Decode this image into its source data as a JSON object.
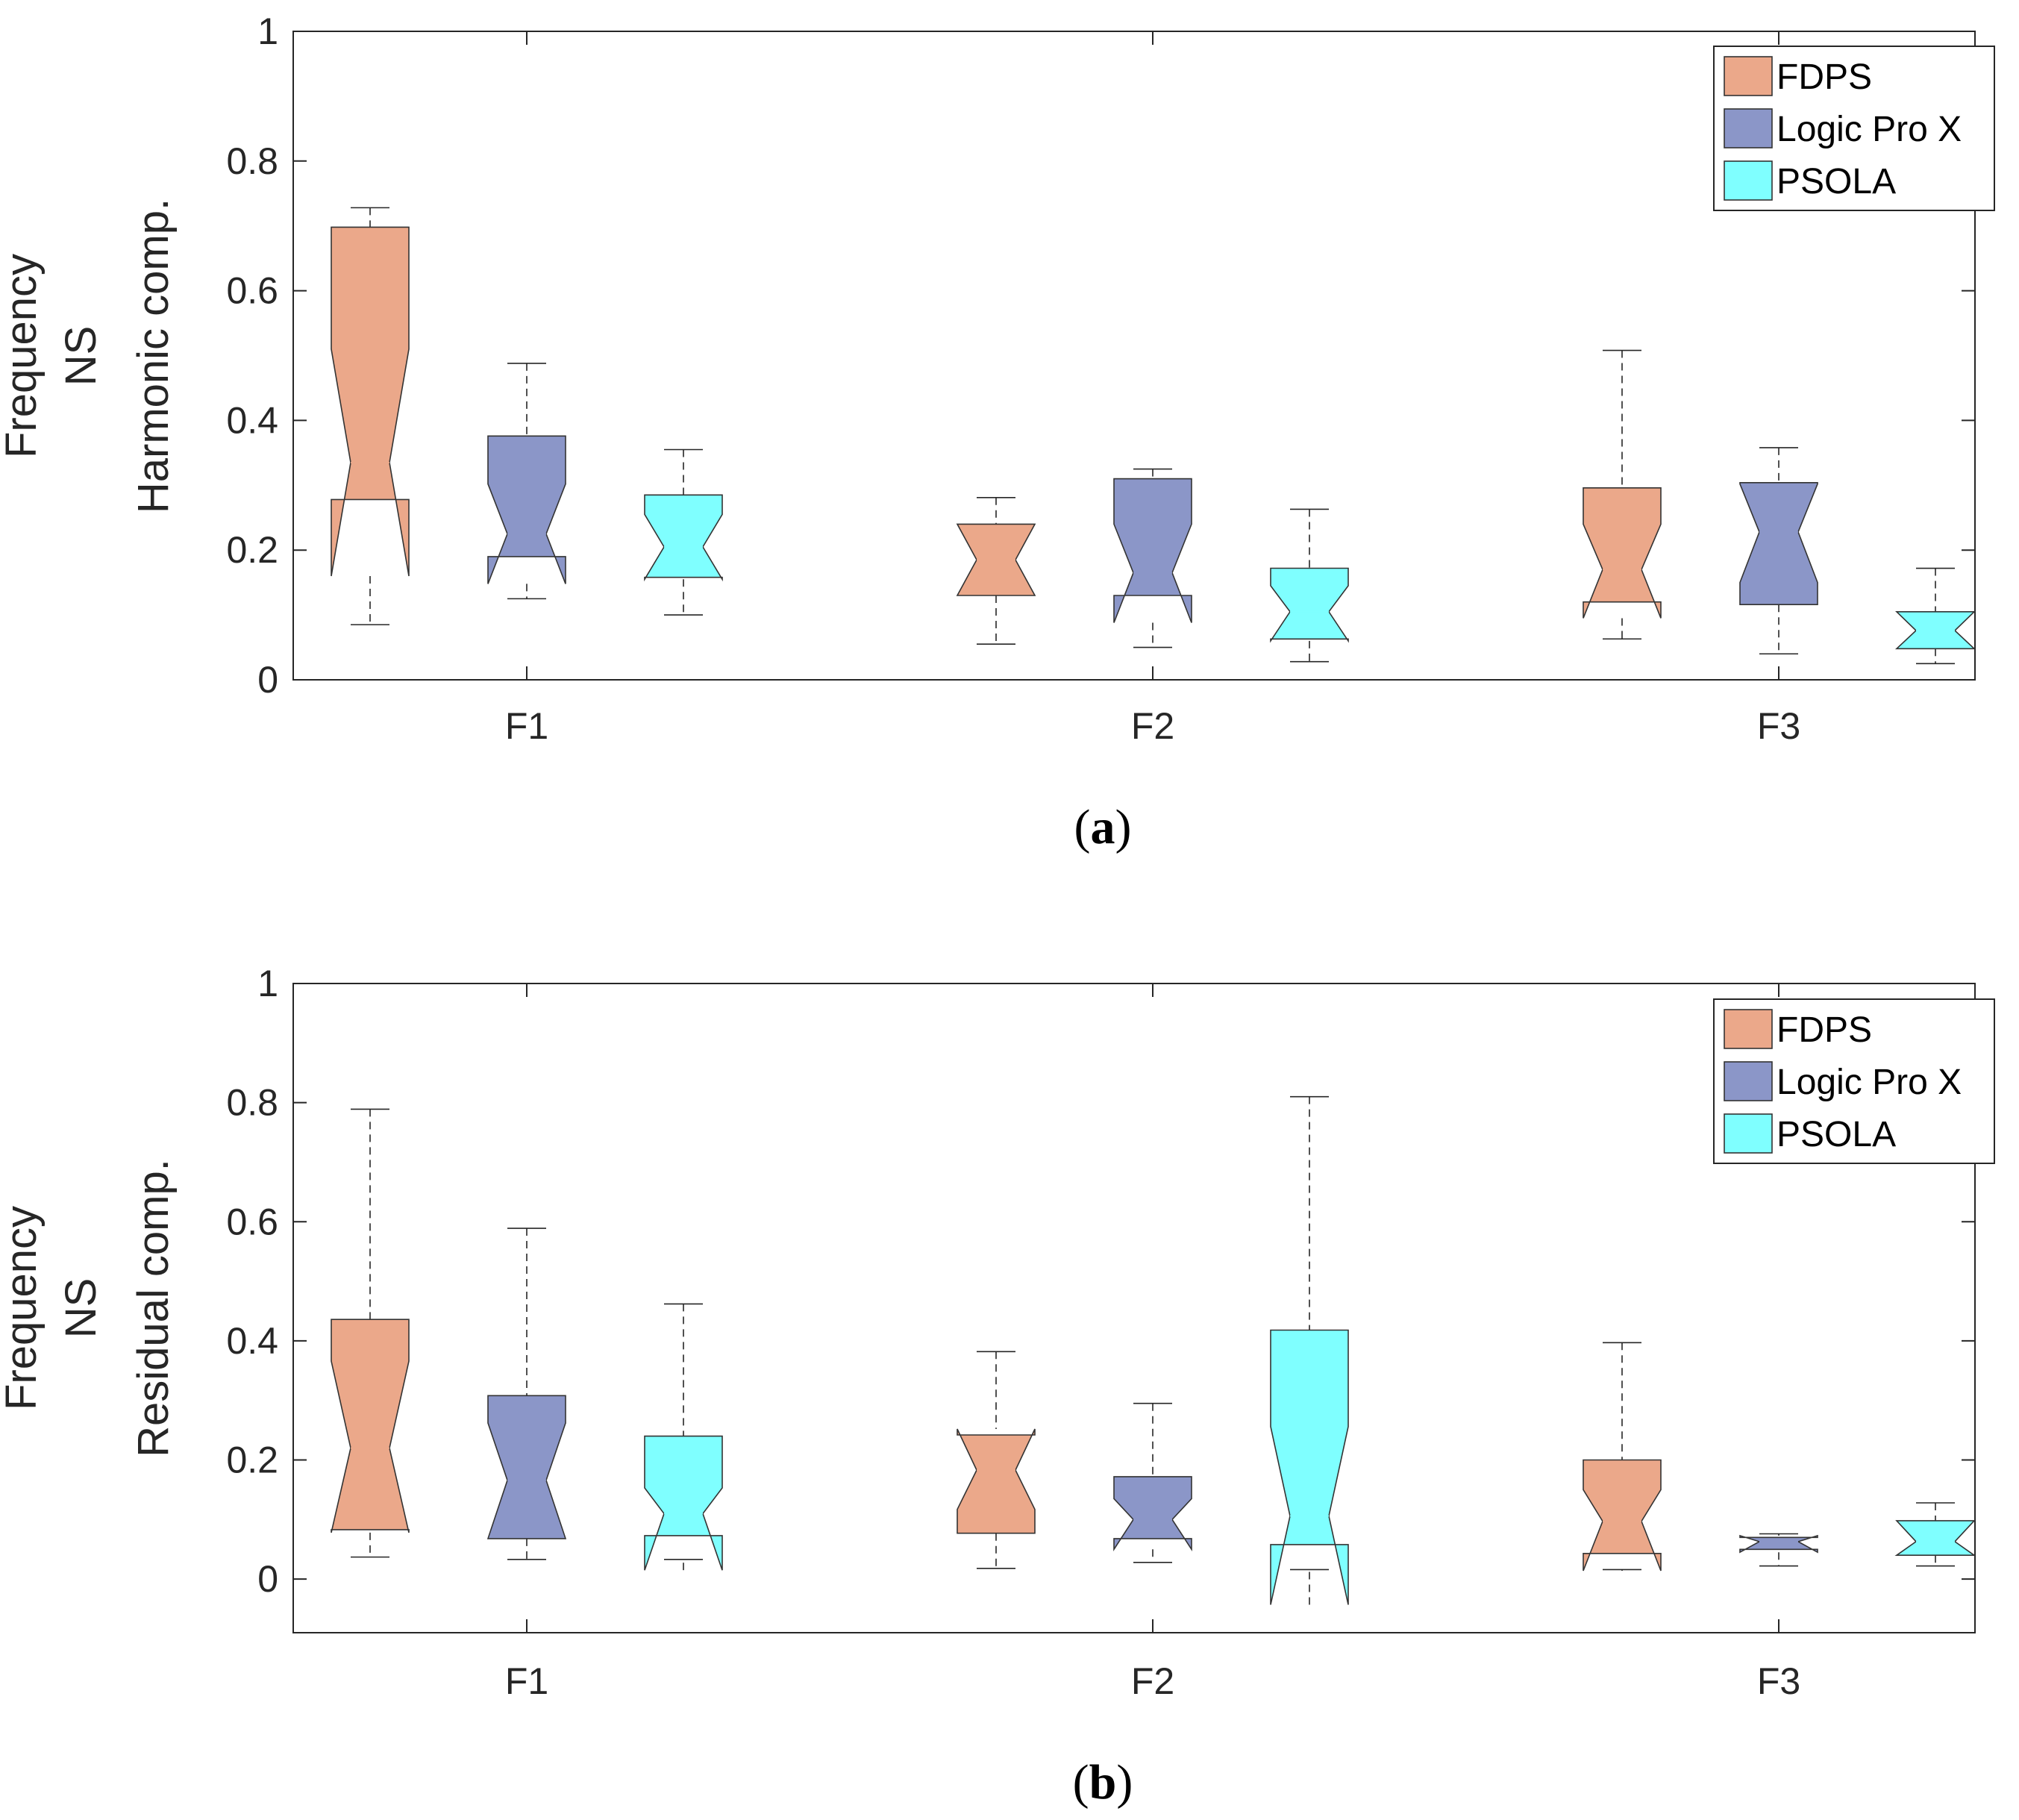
{
  "chart_data": [
    {
      "type": "box",
      "notched": true,
      "caption": "(a)",
      "caption_letter": "a",
      "ylabel_lines": [
        "Frequency",
        "NS",
        "Harmonic comp."
      ],
      "ylim": [
        0,
        1
      ],
      "yticks": [
        0,
        0.2,
        0.4,
        0.6,
        0.8,
        1
      ],
      "ytick_labels": [
        "0",
        "0.2",
        "0.4",
        "0.6",
        "0.8",
        "1"
      ],
      "categories": [
        "F1",
        "F2",
        "F3"
      ],
      "legend": {
        "position": "top-right",
        "entries": [
          "FDPS",
          "Logic Pro X",
          "PSOLA"
        ]
      },
      "series": [
        {
          "name": "FDPS",
          "color": "#EBA88A",
          "boxes": [
            {
              "category": "F1",
              "lower_whisker": 0.085,
              "q1": 0.278,
              "median": 0.335,
              "q3": 0.698,
              "upper_whisker": 0.728,
              "notch_low": 0.16,
              "notch_high": 0.51
            },
            {
              "category": "F2",
              "lower_whisker": 0.055,
              "q1": 0.13,
              "median": 0.185,
              "q3": 0.24,
              "upper_whisker": 0.281,
              "notch_low": 0.13,
              "notch_high": 0.24
            },
            {
              "category": "F3",
              "lower_whisker": 0.063,
              "q1": 0.12,
              "median": 0.17,
              "q3": 0.296,
              "upper_whisker": 0.508,
              "notch_low": 0.095,
              "notch_high": 0.24
            }
          ]
        },
        {
          "name": "Logic Pro X",
          "color": "#8B96C8",
          "boxes": [
            {
              "category": "F1",
              "lower_whisker": 0.125,
              "q1": 0.19,
              "median": 0.225,
              "q3": 0.376,
              "upper_whisker": 0.488,
              "notch_low": 0.148,
              "notch_high": 0.302
            },
            {
              "category": "F2",
              "lower_whisker": 0.05,
              "q1": 0.13,
              "median": 0.165,
              "q3": 0.31,
              "upper_whisker": 0.325,
              "notch_low": 0.088,
              "notch_high": 0.24
            },
            {
              "category": "F3",
              "lower_whisker": 0.04,
              "q1": 0.116,
              "median": 0.228,
              "q3": 0.304,
              "upper_whisker": 0.358,
              "notch_low": 0.15,
              "notch_high": 0.302
            }
          ]
        },
        {
          "name": "PSOLA",
          "color": "#7FFFFF",
          "boxes": [
            {
              "category": "F1",
              "lower_whisker": 0.1,
              "q1": 0.158,
              "median": 0.205,
              "q3": 0.285,
              "upper_whisker": 0.355,
              "notch_low": 0.155,
              "notch_high": 0.255
            },
            {
              "category": "F2",
              "lower_whisker": 0.028,
              "q1": 0.063,
              "median": 0.105,
              "q3": 0.172,
              "upper_whisker": 0.263,
              "notch_low": 0.06,
              "notch_high": 0.145
            },
            {
              "category": "F3",
              "lower_whisker": 0.025,
              "q1": 0.048,
              "median": 0.076,
              "q3": 0.105,
              "upper_whisker": 0.172,
              "notch_low": 0.048,
              "notch_high": 0.105
            }
          ]
        }
      ]
    },
    {
      "type": "box",
      "notched": true,
      "caption": "(b)",
      "caption_letter": "b",
      "ylabel_lines": [
        "Frequency",
        "NS",
        "Residual comp."
      ],
      "ylim": [
        -0.09,
        1
      ],
      "yticks": [
        0,
        0.2,
        0.4,
        0.6,
        0.8,
        1
      ],
      "ytick_labels": [
        "0",
        "0.2",
        "0.4",
        "0.6",
        "0.8",
        "1"
      ],
      "categories": [
        "F1",
        "F2",
        "F3"
      ],
      "legend": {
        "position": "top-right",
        "entries": [
          "FDPS",
          "Logic Pro X",
          "PSOLA"
        ]
      },
      "series": [
        {
          "name": "FDPS",
          "color": "#EBA88A",
          "boxes": [
            {
              "category": "F1",
              "lower_whisker": 0.037,
              "q1": 0.083,
              "median": 0.22,
              "q3": 0.436,
              "upper_whisker": 0.789,
              "notch_low": 0.078,
              "notch_high": 0.366
            },
            {
              "category": "F2",
              "lower_whisker": 0.018,
              "q1": 0.077,
              "median": 0.183,
              "q3": 0.242,
              "upper_whisker": 0.382,
              "notch_low": 0.117,
              "notch_high": 0.252
            },
            {
              "category": "F3",
              "lower_whisker": 0.016,
              "q1": 0.043,
              "median": 0.097,
              "q3": 0.2,
              "upper_whisker": 0.397,
              "notch_low": 0.014,
              "notch_high": 0.15
            }
          ]
        },
        {
          "name": "Logic Pro X",
          "color": "#8B96C8",
          "boxes": [
            {
              "category": "F1",
              "lower_whisker": 0.033,
              "q1": 0.068,
              "median": 0.166,
              "q3": 0.308,
              "upper_whisker": 0.589,
              "notch_low": 0.068,
              "notch_high": 0.262
            },
            {
              "category": "F2",
              "lower_whisker": 0.028,
              "q1": 0.068,
              "median": 0.1,
              "q3": 0.172,
              "upper_whisker": 0.295,
              "notch_low": 0.05,
              "notch_high": 0.135
            },
            {
              "category": "F3",
              "lower_whisker": 0.022,
              "q1": 0.05,
              "median": 0.063,
              "q3": 0.07,
              "upper_whisker": 0.076,
              "notch_low": 0.045,
              "notch_high": 0.073
            }
          ]
        },
        {
          "name": "PSOLA",
          "color": "#7FFFFF",
          "boxes": [
            {
              "category": "F1",
              "lower_whisker": 0.033,
              "q1": 0.073,
              "median": 0.11,
              "q3": 0.24,
              "upper_whisker": 0.462,
              "notch_low": 0.015,
              "notch_high": 0.153
            },
            {
              "category": "F2",
              "lower_whisker": 0.016,
              "q1": 0.058,
              "median": 0.106,
              "q3": 0.418,
              "upper_whisker": 0.81,
              "notch_low": -0.043,
              "notch_high": 0.256
            },
            {
              "category": "F3",
              "lower_whisker": 0.022,
              "q1": 0.04,
              "median": 0.063,
              "q3": 0.098,
              "upper_whisker": 0.128,
              "notch_low": 0.04,
              "notch_high": 0.098
            }
          ]
        }
      ]
    }
  ]
}
